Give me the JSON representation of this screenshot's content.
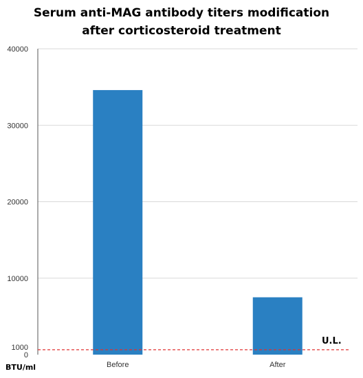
{
  "chart_data": {
    "type": "bar",
    "title_lines": [
      "Serum anti-MAG antibody titers modification",
      "after corticosteroid  treatment"
    ],
    "categories": [
      "Before",
      "After"
    ],
    "values": [
      34600,
      7500
    ],
    "ylabel": "BTU/ml",
    "ylim": [
      0,
      40000
    ],
    "yticks": [
      0,
      1000,
      10000,
      20000,
      30000,
      40000
    ],
    "reference_line": {
      "value": 1000,
      "label": "U.L.",
      "color": "#e03030",
      "style": "dashed"
    },
    "bar_color": "#2a80c2",
    "grid": true,
    "legend": "none"
  }
}
